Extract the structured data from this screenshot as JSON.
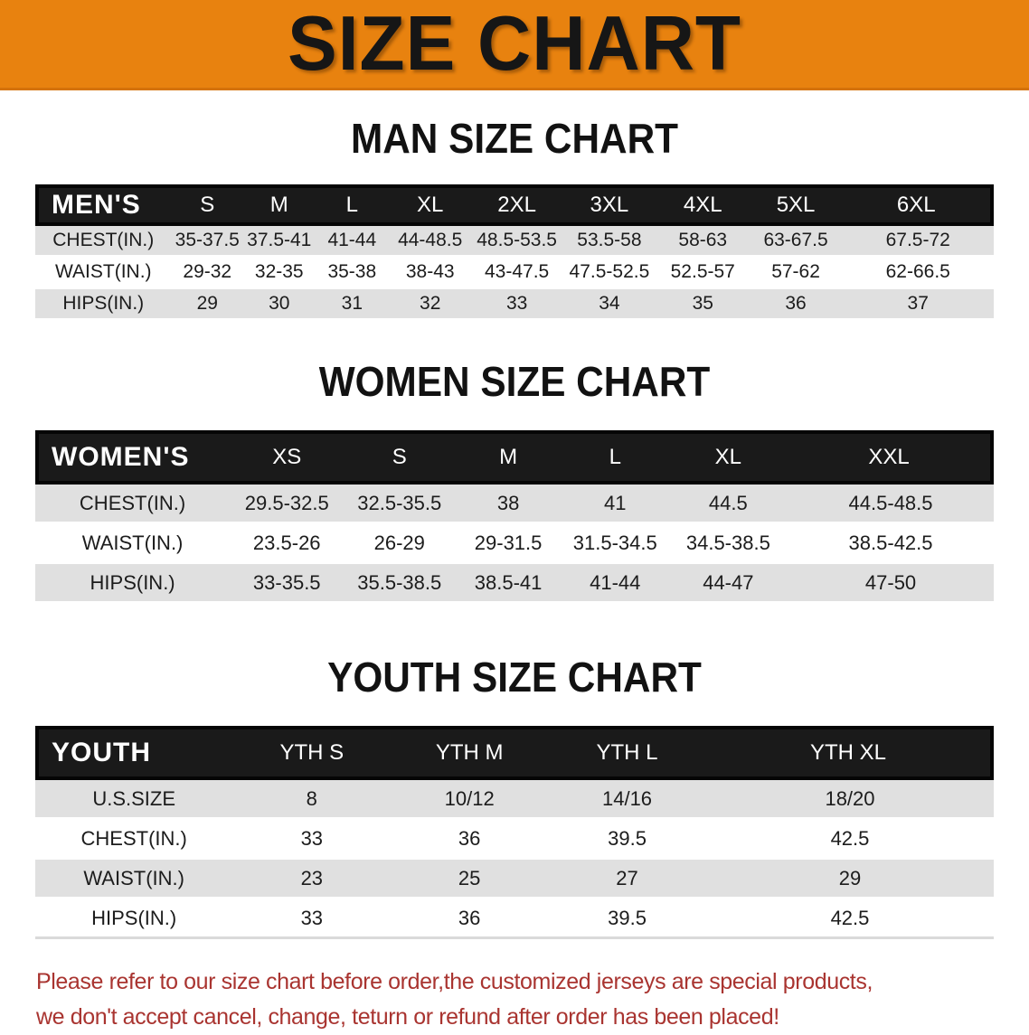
{
  "banner": {
    "title": "SIZE CHART",
    "bg_color": "#E8820F"
  },
  "sections": {
    "men": {
      "heading": "MAN SIZE CHART",
      "table": {
        "label": "MEN'S",
        "columns": [
          "S",
          "M",
          "L",
          "XL",
          "2XL",
          "3XL",
          "4XL",
          "5XL",
          "6XL"
        ],
        "rows": [
          {
            "label": "CHEST(IN.)",
            "values": [
              "35-37.5",
              "37.5-41",
              "41-44",
              "44-48.5",
              "48.5-53.5",
              "53.5-58",
              "58-63",
              "63-67.5",
              "67.5-72"
            ]
          },
          {
            "label": "WAIST(IN.)",
            "values": [
              "29-32",
              "32-35",
              "35-38",
              "38-43",
              "43-47.5",
              "47.5-52.5",
              "52.5-57",
              "57-62",
              "62-66.5"
            ]
          },
          {
            "label": "HIPS(IN.)",
            "values": [
              "29",
              "30",
              "31",
              "32",
              "33",
              "34",
              "35",
              "36",
              "37"
            ]
          }
        ]
      }
    },
    "women": {
      "heading": "WOMEN SIZE CHART",
      "table": {
        "label": "WOMEN'S",
        "columns": [
          "XS",
          "S",
          "M",
          "L",
          "XL",
          "XXL"
        ],
        "rows": [
          {
            "label": "CHEST(IN.)",
            "values": [
              "29.5-32.5",
              "32.5-35.5",
              "38",
              "41",
              "44.5",
              "44.5-48.5"
            ]
          },
          {
            "label": "WAIST(IN.)",
            "values": [
              "23.5-26",
              "26-29",
              "29-31.5",
              "31.5-34.5",
              "34.5-38.5",
              "38.5-42.5"
            ]
          },
          {
            "label": "HIPS(IN.)",
            "values": [
              "33-35.5",
              "35.5-38.5",
              "38.5-41",
              "41-44",
              "44-47",
              "47-50"
            ]
          }
        ]
      }
    },
    "youth": {
      "heading": "YOUTH SIZE CHART",
      "table": {
        "label": "YOUTH",
        "columns": [
          "YTH S",
          "YTH M",
          "YTH L",
          "YTH XL"
        ],
        "rows": [
          {
            "label": "U.S.SIZE",
            "values": [
              "8",
              "10/12",
              "14/16",
              "18/20"
            ]
          },
          {
            "label": "CHEST(IN.)",
            "values": [
              "33",
              "36",
              "39.5",
              "42.5"
            ]
          },
          {
            "label": "WAIST(IN.)",
            "values": [
              "23",
              "25",
              "27",
              "29"
            ]
          },
          {
            "label": "HIPS(IN.)",
            "values": [
              "33",
              "36",
              "39.5",
              "42.5"
            ]
          }
        ]
      }
    }
  },
  "disclaimer": {
    "line1": "Please refer to our size chart before order,the customized jerseys are special products,",
    "line2": "we don't accept cancel, change, teturn or refund after order has been placed!",
    "color": "#A93430"
  },
  "colors": {
    "banner_orange": "#E8820F",
    "header_black": "#1A1A1A",
    "row_gray": "#E0E0E0",
    "disclaimer_red": "#A93430"
  }
}
